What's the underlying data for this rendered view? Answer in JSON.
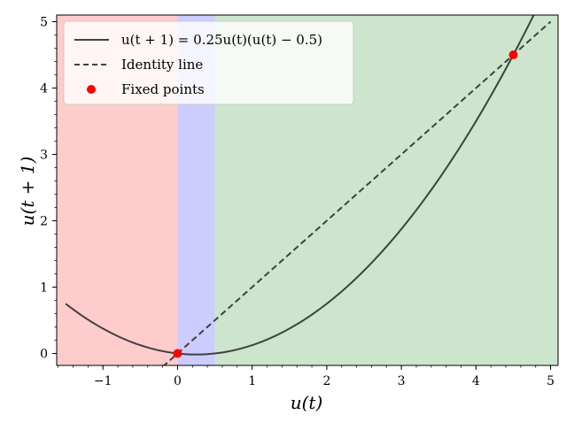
{
  "chart_data": {
    "type": "line",
    "xlabel": "u(t)",
    "ylabel": "u(t + 1)",
    "xlim": [
      -1.62,
      5.1
    ],
    "ylim": [
      -0.18,
      5.1
    ],
    "xticks": [
      -1,
      0,
      1,
      2,
      3,
      4,
      5
    ],
    "yticks": [
      0,
      1,
      2,
      3,
      4,
      5
    ],
    "regions": [
      {
        "x_from": -1.62,
        "x_to": 0.0,
        "color": "#ffcccc"
      },
      {
        "x_from": 0.0,
        "x_to": 0.5,
        "color": "#ccccff"
      },
      {
        "x_from": 0.5,
        "x_to": 5.1,
        "color": "#cce5cc"
      }
    ],
    "series": [
      {
        "name": "u(t + 1) = 0.25u(t)(u(t) − 0.5)",
        "style": "solid",
        "color": "#404040",
        "x_range": [
          -1.5,
          5.1
        ],
        "equation": "0.25*x*(x-0.5)"
      },
      {
        "name": "Identity line",
        "style": "dashed",
        "color": "#404040",
        "x_range": [
          -0.2,
          5.0
        ],
        "equation": "x"
      },
      {
        "name": "Fixed points",
        "style": "points",
        "color": "#ff0000",
        "points": [
          {
            "x": 0,
            "y": 0
          },
          {
            "x": 4.5,
            "y": 4.5
          }
        ]
      }
    ],
    "legend": {
      "position": "top-left",
      "entries": [
        "u(t + 1) = 0.25u(t)(u(t) − 0.5)",
        "Identity line",
        "Fixed points"
      ]
    }
  }
}
